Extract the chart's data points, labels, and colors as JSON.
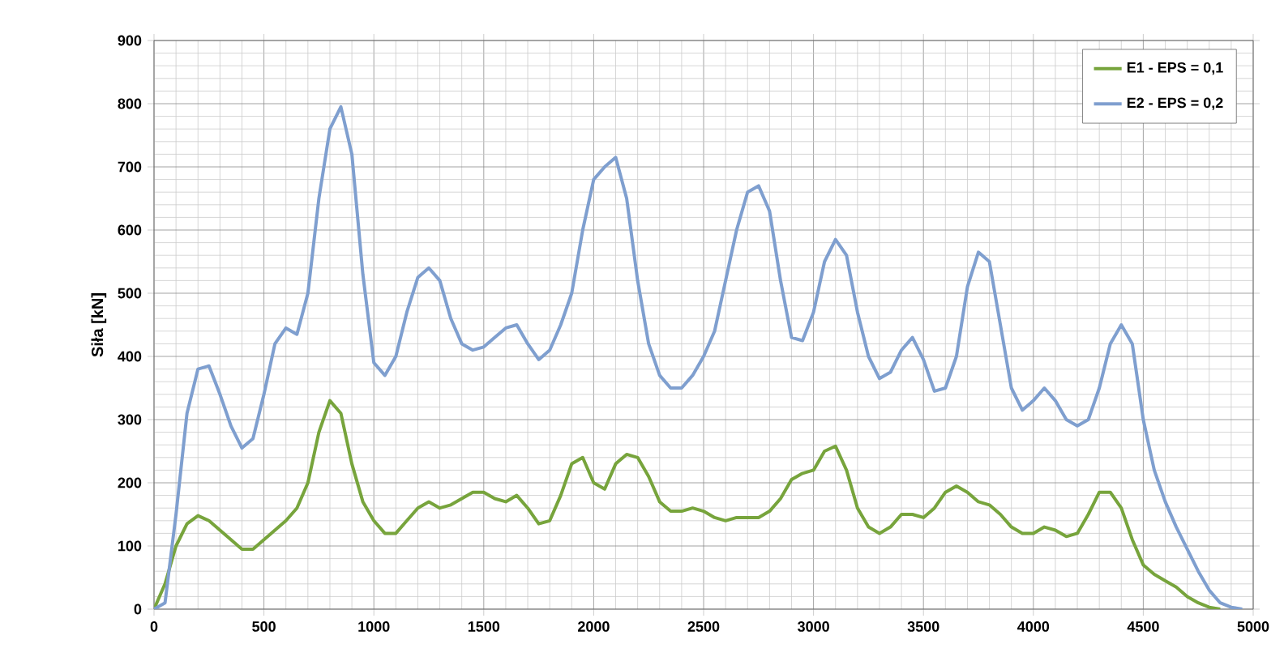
{
  "chart_data": {
    "type": "line",
    "ylabel": "Siła [kN]",
    "xlim": [
      0,
      5000
    ],
    "ylim": [
      0,
      900
    ],
    "xticks": [
      0,
      500,
      1000,
      1500,
      2000,
      2500,
      3000,
      3500,
      4000,
      4500,
      5000
    ],
    "yticks": [
      0,
      100,
      200,
      300,
      400,
      500,
      600,
      700,
      800,
      900
    ],
    "grid": true,
    "legend": "top right",
    "marker": "none",
    "line_style": "solid",
    "series": [
      {
        "name": "E1 - EPS = 0,1",
        "color": "#77a43c",
        "x": [
          0,
          50,
          100,
          150,
          200,
          250,
          300,
          350,
          400,
          450,
          500,
          550,
          600,
          650,
          700,
          750,
          800,
          850,
          900,
          950,
          1000,
          1050,
          1100,
          1150,
          1200,
          1250,
          1300,
          1350,
          1400,
          1450,
          1500,
          1550,
          1600,
          1650,
          1700,
          1750,
          1800,
          1850,
          1900,
          1950,
          2000,
          2050,
          2100,
          2150,
          2200,
          2250,
          2300,
          2350,
          2400,
          2450,
          2500,
          2550,
          2600,
          2650,
          2700,
          2750,
          2800,
          2850,
          2900,
          2950,
          3000,
          3050,
          3100,
          3150,
          3200,
          3250,
          3300,
          3350,
          3400,
          3450,
          3500,
          3550,
          3600,
          3650,
          3700,
          3750,
          3800,
          3850,
          3900,
          3950,
          4000,
          4050,
          4100,
          4150,
          4200,
          4250,
          4300,
          4350,
          4400,
          4450,
          4500,
          4550,
          4600,
          4650,
          4700,
          4750,
          4800,
          4850
        ],
        "values": [
          0,
          40,
          100,
          135,
          148,
          140,
          125,
          110,
          95,
          95,
          110,
          125,
          140,
          160,
          200,
          280,
          330,
          310,
          230,
          170,
          140,
          120,
          120,
          140,
          160,
          170,
          160,
          165,
          175,
          185,
          185,
          175,
          170,
          180,
          160,
          135,
          140,
          180,
          230,
          240,
          200,
          190,
          230,
          245,
          240,
          210,
          170,
          155,
          155,
          160,
          155,
          145,
          140,
          145,
          145,
          145,
          155,
          175,
          205,
          215,
          220,
          250,
          258,
          220,
          160,
          130,
          120,
          130,
          150,
          150,
          145,
          160,
          185,
          195,
          185,
          170,
          165,
          150,
          130,
          120,
          120,
          130,
          125,
          115,
          120,
          150,
          185,
          185,
          160,
          110,
          70,
          55,
          45,
          35,
          20,
          10,
          3,
          0
        ]
      },
      {
        "name": "E2 - EPS = 0,2",
        "color": "#7f9fcf",
        "x": [
          0,
          50,
          100,
          150,
          200,
          250,
          300,
          350,
          400,
          450,
          500,
          550,
          600,
          650,
          700,
          750,
          800,
          850,
          900,
          950,
          1000,
          1050,
          1100,
          1150,
          1200,
          1250,
          1300,
          1350,
          1400,
          1450,
          1500,
          1550,
          1600,
          1650,
          1700,
          1750,
          1800,
          1850,
          1900,
          1950,
          2000,
          2050,
          2100,
          2150,
          2200,
          2250,
          2300,
          2350,
          2400,
          2450,
          2500,
          2550,
          2600,
          2650,
          2700,
          2750,
          2800,
          2850,
          2900,
          2950,
          3000,
          3050,
          3100,
          3150,
          3200,
          3250,
          3300,
          3350,
          3400,
          3450,
          3500,
          3550,
          3600,
          3650,
          3700,
          3750,
          3800,
          3850,
          3900,
          3950,
          4000,
          4050,
          4100,
          4150,
          4200,
          4250,
          4300,
          4350,
          4400,
          4450,
          4500,
          4550,
          4600,
          4650,
          4700,
          4750,
          4800,
          4850,
          4900,
          4950
        ],
        "values": [
          0,
          10,
          150,
          310,
          380,
          385,
          340,
          290,
          255,
          270,
          340,
          420,
          445,
          435,
          500,
          650,
          760,
          795,
          720,
          530,
          390,
          370,
          400,
          470,
          525,
          540,
          520,
          460,
          420,
          410,
          415,
          430,
          445,
          450,
          420,
          395,
          410,
          450,
          500,
          600,
          680,
          700,
          715,
          650,
          520,
          420,
          370,
          350,
          350,
          370,
          400,
          440,
          520,
          600,
          660,
          670,
          630,
          520,
          430,
          425,
          470,
          550,
          585,
          560,
          470,
          400,
          365,
          375,
          410,
          430,
          395,
          345,
          350,
          400,
          510,
          565,
          550,
          450,
          350,
          315,
          330,
          350,
          330,
          300,
          290,
          300,
          350,
          420,
          450,
          420,
          300,
          220,
          170,
          130,
          95,
          60,
          30,
          10,
          3,
          0
        ]
      }
    ]
  }
}
